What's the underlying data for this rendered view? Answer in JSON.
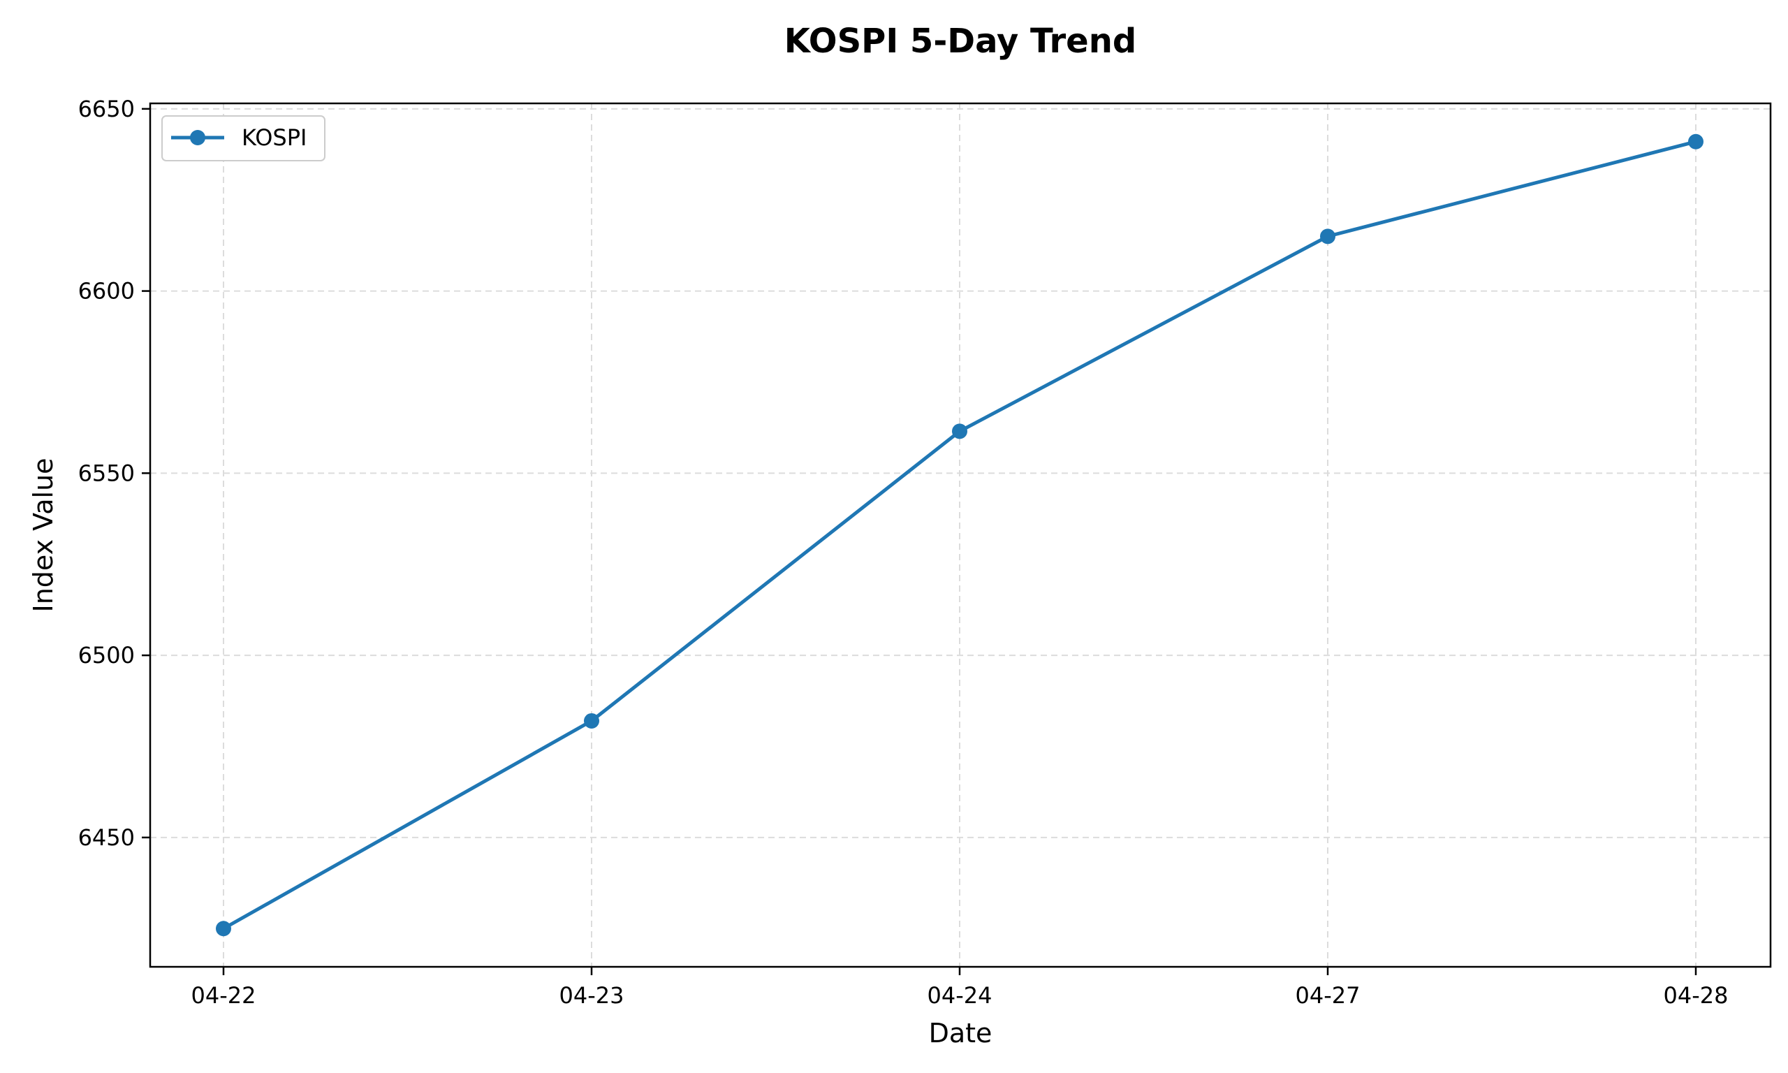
{
  "chart_data": {
    "type": "line",
    "title": "KOSPI 5-Day Trend",
    "xlabel": "Date",
    "ylabel": "Index Value",
    "categories": [
      "04-22",
      "04-23",
      "04-24",
      "04-27",
      "04-28"
    ],
    "series": [
      {
        "name": "KOSPI",
        "values": [
          6425.0,
          6482.0,
          6561.5,
          6615.0,
          6641.0
        ],
        "color": "#1f77b4",
        "marker": "circle"
      }
    ],
    "yticks": [
      6450,
      6500,
      6550,
      6600,
      6650
    ],
    "ylim": [
      6414.5,
      6651.5
    ],
    "grid": true,
    "legend": "top-left"
  }
}
